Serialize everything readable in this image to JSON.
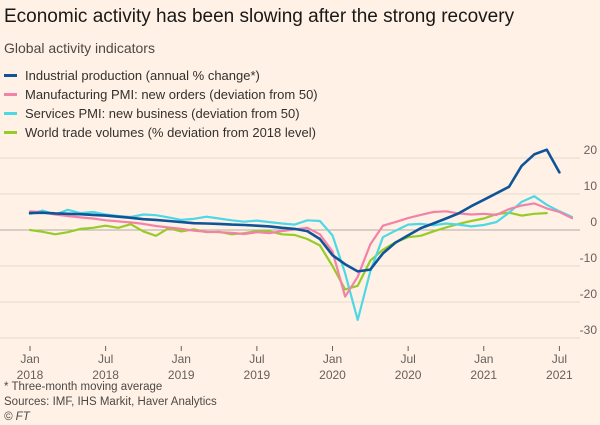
{
  "chart_data": {
    "type": "line",
    "title": "Economic activity has been slowing after the strong recovery",
    "subtitle": "Global activity indicators",
    "ylim": [
      -30,
      25
    ],
    "yticks": [
      20,
      10,
      0,
      -10,
      -20,
      -30
    ],
    "x_range": [
      0,
      43
    ],
    "x_unit": "months since Jan 2018",
    "xticks": [
      {
        "x": 0,
        "month": "Jan",
        "year": "2018"
      },
      {
        "x": 6,
        "month": "Jul",
        "year": "2018"
      },
      {
        "x": 12,
        "month": "Jan",
        "year": "2019"
      },
      {
        "x": 18,
        "month": "Jul",
        "year": "2019"
      },
      {
        "x": 24,
        "month": "Jan",
        "year": "2020"
      },
      {
        "x": 30,
        "month": "Jul",
        "year": "2020"
      },
      {
        "x": 36,
        "month": "Jan",
        "year": "2021"
      },
      {
        "x": 42,
        "month": "Jul",
        "year": "2021"
      }
    ],
    "series": [
      {
        "name": "World trade volumes (% deviation from 2018 level)",
        "color": "#96cc28",
        "x": [
          0,
          1,
          2,
          3,
          4,
          5,
          6,
          7,
          8,
          9,
          10,
          11,
          12,
          13,
          14,
          15,
          16,
          17,
          18,
          19,
          20,
          21,
          22,
          23,
          24,
          25,
          26,
          27,
          28,
          29,
          30,
          31,
          32,
          33,
          34,
          35,
          36,
          37,
          38,
          39,
          40,
          41
        ],
        "values": [
          0,
          -0.5,
          -1.2,
          -0.6,
          0.3,
          0.6,
          1.2,
          0.6,
          1.6,
          -0.4,
          -1.6,
          0.5,
          -0.4,
          0.2,
          -0.6,
          -0.5,
          -1.2,
          -0.9,
          -0.3,
          -0.4,
          -1.2,
          -1.4,
          -2.5,
          -4.3,
          -10,
          -16.5,
          -15.5,
          -8.5,
          -5.5,
          -3.4,
          -2,
          -1.6,
          -0.4,
          0.7,
          1.7,
          2.5,
          3.2,
          4.4,
          4.8,
          4,
          4.5,
          4.7
        ]
      },
      {
        "name": "Services PMI: new business (deviation from 50)",
        "color": "#4dd8e6",
        "x": [
          0,
          1,
          2,
          3,
          4,
          5,
          6,
          7,
          8,
          9,
          10,
          11,
          12,
          13,
          14,
          15,
          16,
          17,
          18,
          19,
          20,
          21,
          22,
          23,
          24,
          25,
          26,
          27,
          28,
          29,
          30,
          31,
          32,
          33,
          34,
          35,
          36,
          37,
          38,
          39,
          40,
          41,
          42,
          43
        ],
        "values": [
          4.5,
          5.4,
          4.3,
          5.6,
          4.7,
          5,
          4.3,
          3.9,
          3.6,
          4.3,
          4.1,
          3.5,
          2.8,
          3.1,
          3.7,
          3.2,
          2.7,
          2.3,
          2.6,
          2.2,
          1.8,
          1.5,
          2.7,
          2.5,
          -1.5,
          -12,
          -25,
          -11.5,
          -2,
          -0.2,
          1.5,
          1.7,
          1.3,
          1.8,
          1.5,
          1,
          1.4,
          2.2,
          4.8,
          7.8,
          9.4,
          7,
          5.2,
          3.6
        ]
      },
      {
        "name": "Manufacturing PMI: new orders (deviation from 50)",
        "color": "#f283a7",
        "x": [
          0,
          1,
          2,
          3,
          4,
          5,
          6,
          7,
          8,
          9,
          10,
          11,
          12,
          13,
          14,
          15,
          16,
          17,
          18,
          19,
          20,
          21,
          22,
          23,
          24,
          25,
          26,
          27,
          28,
          29,
          30,
          31,
          32,
          33,
          34,
          35,
          36,
          37,
          38,
          39,
          40,
          41,
          42,
          43
        ],
        "values": [
          5.2,
          4.9,
          4.3,
          3.9,
          3.5,
          3.2,
          2.7,
          2.4,
          2.1,
          1.7,
          1.1,
          0.7,
          0.3,
          -0.2,
          -0.5,
          -0.6,
          -0.8,
          -1.1,
          -0.6,
          -0.9,
          -0.3,
          0.2,
          0.6,
          -1.2,
          -6,
          -18.5,
          -13,
          -4,
          1.2,
          2.2,
          3.3,
          4.2,
          5,
          5.2,
          4.6,
          4.3,
          4.5,
          4.2,
          5.8,
          6.8,
          7.4,
          6,
          5,
          3.3
        ]
      },
      {
        "name": "Industrial production (annual % change*)",
        "color": "#0f5499",
        "x": [
          0,
          1,
          2,
          3,
          4,
          5,
          6,
          7,
          8,
          9,
          10,
          11,
          12,
          13,
          14,
          15,
          16,
          17,
          18,
          19,
          20,
          21,
          22,
          23,
          24,
          25,
          26,
          27,
          28,
          29,
          30,
          31,
          32,
          33,
          34,
          35,
          36,
          37,
          38,
          39,
          40,
          41,
          42
        ],
        "values": [
          4.7,
          4.8,
          4.6,
          4.5,
          4.4,
          4.2,
          4,
          3.7,
          3.4,
          3,
          2.8,
          2.5,
          2.2,
          1.9,
          1.8,
          1.7,
          1.5,
          1.4,
          1.2,
          1,
          0.6,
          0.3,
          -0.3,
          -2.5,
          -7,
          -9.5,
          -11.5,
          -11,
          -6.5,
          -3.5,
          -1.5,
          0.5,
          1.8,
          3.2,
          4.6,
          6.6,
          8.4,
          10.2,
          12,
          17.8,
          21,
          22.3,
          16
        ]
      }
    ],
    "legend_order": [
      3,
      2,
      1,
      0
    ],
    "footnotes": [
      "* Three-month moving average",
      "Sources: IMF, IHS Markit, Haver Analytics",
      "© FT"
    ]
  }
}
